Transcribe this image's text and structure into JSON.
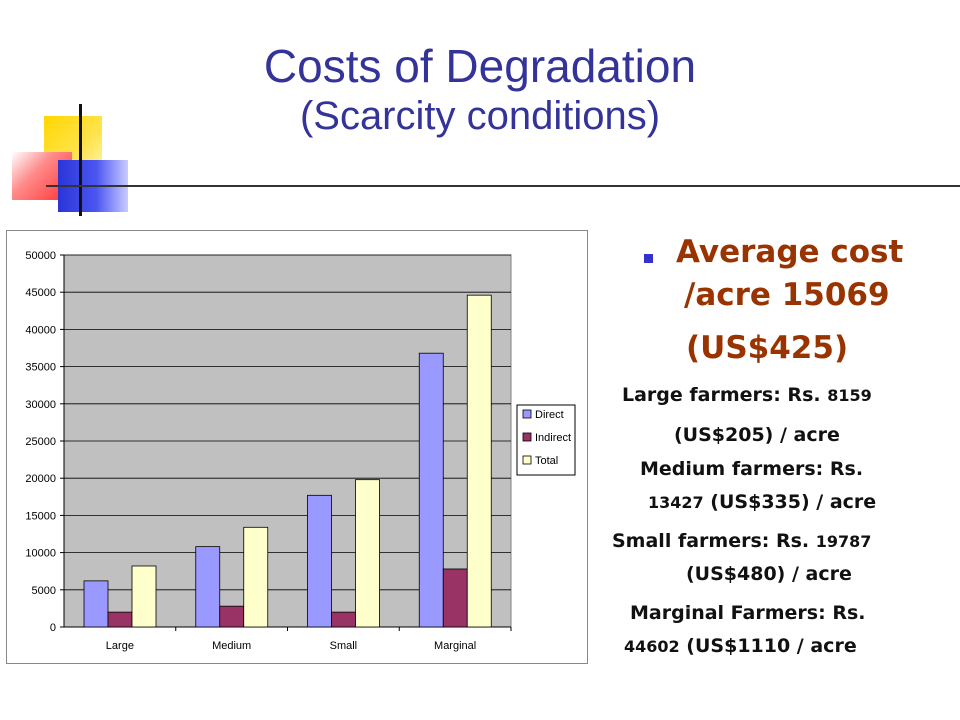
{
  "title": {
    "line1": "Costs of Degradation",
    "line2": "(Scarcity conditions)"
  },
  "bullet": {
    "line1": "Average cost",
    "line2": "/acre 15069",
    "line3": "(US$425)"
  },
  "farmers": {
    "large_a": "Large farmers: Rs.",
    "large_num": "8159",
    "large_b": "(US$205) / acre",
    "medium_a": "Medium farmers: Rs.",
    "medium_num": "13427",
    "medium_b": "(US$335) / acre",
    "small_a": "Small farmers: Rs.",
    "small_num": "19787",
    "small_b": "(US$480) / acre",
    "marginal_a": "Marginal Farmers: Rs.",
    "marginal_num": "44602",
    "marginal_b": "(US$1110 / acre"
  },
  "colors": {
    "title": "#333399",
    "bullet_text": "#993300",
    "plot_bg": "#c0c0c0",
    "direct": "#9999ff",
    "indirect": "#993366",
    "total": "#ffffcc"
  },
  "chart_data": {
    "type": "bar",
    "categories": [
      "Large",
      "Medium",
      "Small",
      "Marginal"
    ],
    "series": [
      {
        "name": "Direct",
        "values": [
          6200,
          10800,
          17700,
          36800
        ],
        "color": "#9999ff"
      },
      {
        "name": "Indirect",
        "values": [
          2000,
          2800,
          2000,
          7800
        ],
        "color": "#993366"
      },
      {
        "name": "Total",
        "values": [
          8200,
          13400,
          19800,
          44600
        ],
        "color": "#ffffcc"
      }
    ],
    "ylim": [
      0,
      50000
    ],
    "yticks": [
      0,
      5000,
      10000,
      15000,
      20000,
      25000,
      30000,
      35000,
      40000,
      45000,
      50000
    ],
    "title": "",
    "xlabel": "",
    "ylabel": "",
    "grid": true,
    "legend_position": "right"
  }
}
